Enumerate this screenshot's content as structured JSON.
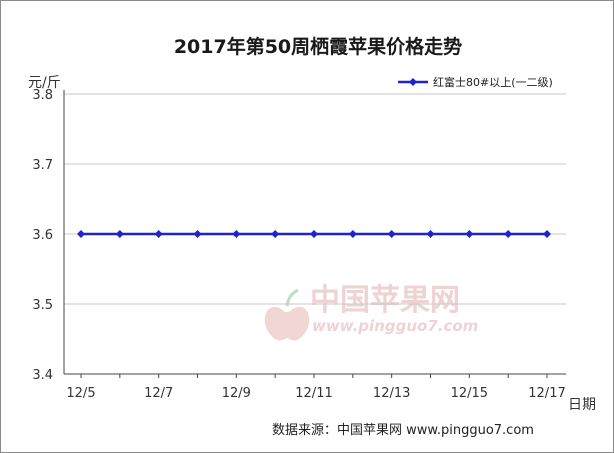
{
  "chart_data": {
    "type": "line",
    "title": "2017年第50周栖霞苹果价格走势",
    "ylabel": "元/斤",
    "xlabel": "日期",
    "categories": [
      "12/5",
      "12/6",
      "12/7",
      "12/8",
      "12/9",
      "12/10",
      "12/11",
      "12/12",
      "12/13",
      "12/14",
      "12/15",
      "12/16",
      "12/17"
    ],
    "x_tick_labels": [
      "12/5",
      "12/7",
      "12/9",
      "12/11",
      "12/13",
      "12/15",
      "12/17"
    ],
    "ylim": [
      3.4,
      3.8
    ],
    "y_ticks": [
      "3.4",
      "3.5",
      "3.6",
      "3.7",
      "3.8"
    ],
    "grid": "horizontal",
    "legend_position": "top-right",
    "series": [
      {
        "name": "红富士80#以上(一二级)",
        "color": "#1f24c8",
        "values": [
          3.6,
          3.6,
          3.6,
          3.6,
          3.6,
          3.6,
          3.6,
          3.6,
          3.6,
          3.6,
          3.6,
          3.6,
          3.6
        ]
      }
    ]
  },
  "source": "数据来源：中国苹果网 www.pingguo7.com",
  "watermark": {
    "name": "中国苹果网",
    "url": "www.pingguo7.com"
  }
}
